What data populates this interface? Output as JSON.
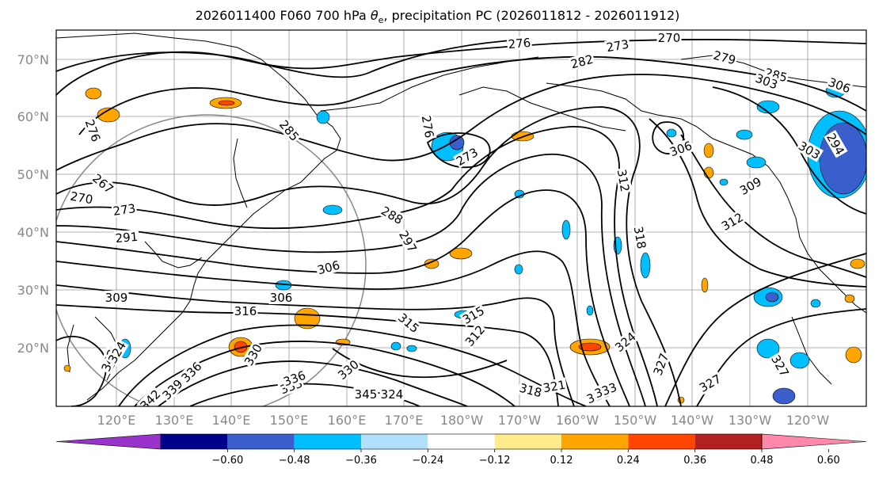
{
  "title": {
    "prefix": "2026011400 F060 700 hPa ",
    "symbol": "θ",
    "subscript": "e",
    "suffix": ", precipitation PC (2026011812 - 2026011912)"
  },
  "map": {
    "lat_labels": [
      "70°N",
      "60°N",
      "50°N",
      "40°N",
      "30°N",
      "20°N"
    ],
    "lon_labels": [
      "120°E",
      "130°E",
      "140°E",
      "150°E",
      "160°E",
      "170°E",
      "180°W",
      "170°W",
      "160°W",
      "150°W",
      "140°W",
      "130°W",
      "120°W"
    ],
    "contour_labels": [
      "276",
      "273",
      "270",
      "279",
      "282",
      "285",
      "276",
      "273",
      "276",
      "267",
      "270",
      "273",
      "285",
      "288",
      "297",
      "291",
      "306",
      "306",
      "303",
      "309",
      "306",
      "312",
      "318",
      "316",
      "315",
      "312",
      "315",
      "309",
      "312",
      "306",
      "303",
      "294",
      "324",
      "327",
      "327",
      "318",
      "321",
      "324",
      "330",
      "333",
      "336",
      "339",
      "342",
      "345",
      "342",
      "330",
      "324",
      "321",
      "333",
      "327",
      "336"
    ],
    "shade_colors": {
      "neg_strong": "#3a5fcd",
      "neg_mid": "#00bfff",
      "pos_mid": "#ffa500",
      "pos_strong": "#ff4500"
    }
  },
  "colorbar": {
    "colors": [
      "#9933cc",
      "#00008b",
      "#3a5fcd",
      "#00bfff",
      "#b0e0fa",
      "#ffffff",
      "#ffeb8c",
      "#ffa500",
      "#ff4500",
      "#b22222",
      "#ff88aa"
    ],
    "ticks": [
      "−0.60",
      "−0.48",
      "−0.36",
      "−0.24",
      "−0.12",
      "0.12",
      "0.24",
      "0.36",
      "0.48",
      "0.60"
    ]
  }
}
